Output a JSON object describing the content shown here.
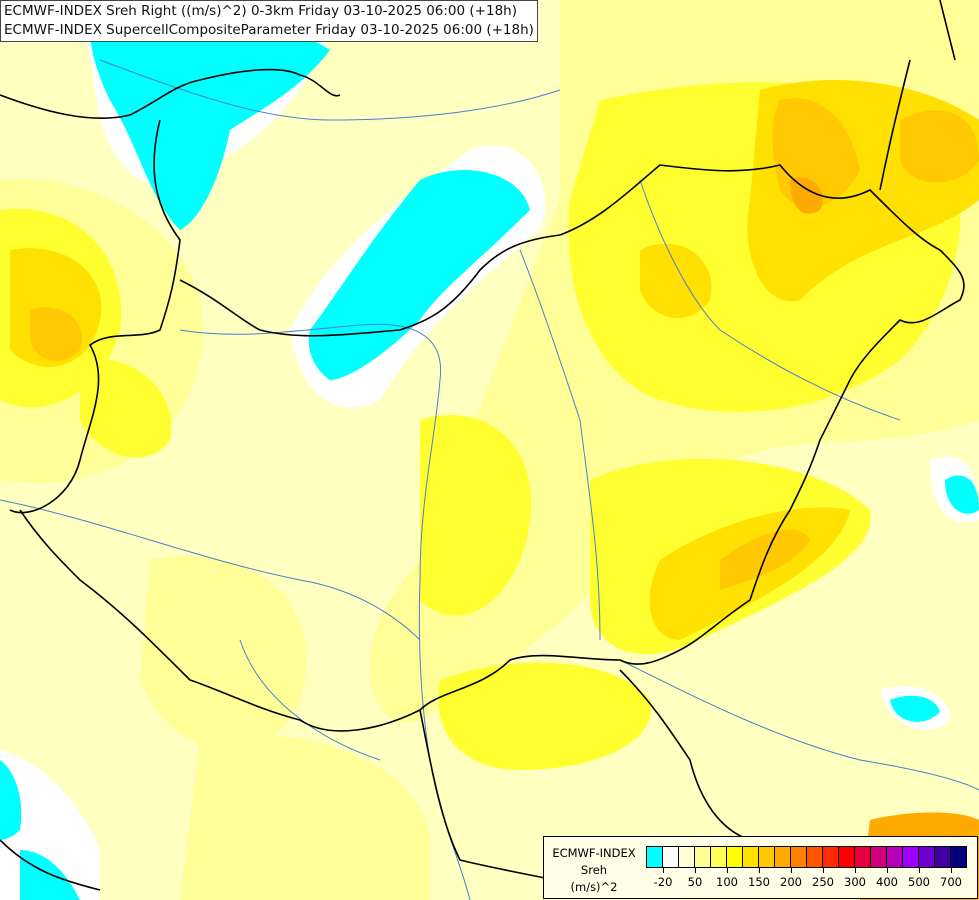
{
  "header": {
    "title_line1": "ECMWF-INDEX Sreh Right ((m/s)^2) 0-3km Friday 03-10-2025 06:00 (+18h)",
    "title_line2": "ECMWF-INDEX SupercellCompositeParameter Friday 03-10-2025 06:00 (+18h)"
  },
  "legend": {
    "line1": "ECMWF-INDEX",
    "line2": "Sreh",
    "line3": "(m/s)^2",
    "colors": [
      "#00ffff",
      "#ffffff",
      "#ffffd8",
      "#ffff98",
      "#ffff58",
      "#ffff00",
      "#ffe000",
      "#ffc800",
      "#ffaa00",
      "#ff8000",
      "#ff5500",
      "#ff2a00",
      "#ff0000",
      "#e8003c",
      "#d0007a",
      "#b800b8",
      "#a000ff",
      "#7000d0",
      "#4000a0",
      "#000080"
    ],
    "ticks": [
      "-20",
      "50",
      "100",
      "150",
      "200",
      "250",
      "300",
      "400",
      "500",
      "700"
    ]
  },
  "map": {
    "colors": {
      "base": "#ffffc0",
      "pale": "#ffff98",
      "yellow": "#ffff30",
      "gold": "#ffe000",
      "orange": "#ffc800",
      "dark_orange": "#ffaa00",
      "cyan": "#00ffff",
      "white": "#ffffff",
      "border": "#000000",
      "river": "#4a7fd0"
    }
  }
}
